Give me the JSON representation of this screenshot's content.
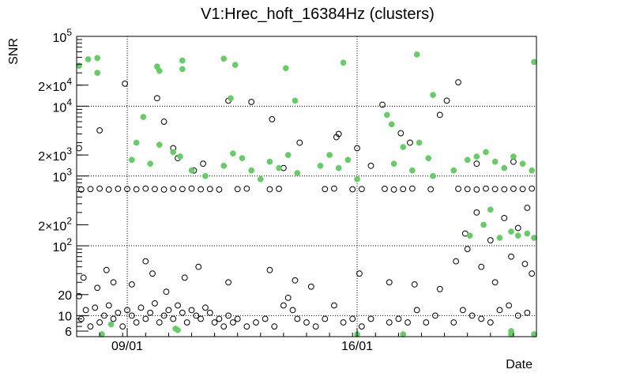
{
  "chart_data": {
    "type": "scatter",
    "title": "V1:Hrec_hoft_16384Hz (clusters)",
    "xlabel": "Date",
    "ylabel": "SNR",
    "x_unit": "days",
    "xlim": [
      0,
      20
    ],
    "ylim": [
      5,
      100000
    ],
    "y_scale": "log",
    "grid": true,
    "x_ticks": [
      {
        "value": 2.2,
        "label": "09/01"
      },
      {
        "value": 12.2,
        "label": "16/01"
      }
    ],
    "y_ticks": [
      {
        "value": 6,
        "label": "6"
      },
      {
        "value": 10,
        "label": "10"
      },
      {
        "value": 20,
        "label": "20"
      },
      {
        "value": 100,
        "label": "10",
        "exp": "2"
      },
      {
        "value": 200,
        "label": "2×10",
        "exp": "2"
      },
      {
        "value": 1000,
        "label": "10",
        "exp": "3"
      },
      {
        "value": 2000,
        "label": "2×10",
        "exp": "3"
      },
      {
        "value": 10000,
        "label": "10",
        "exp": "4"
      },
      {
        "value": 20000,
        "label": "2×10",
        "exp": "4"
      },
      {
        "value": 100000,
        "label": "10",
        "exp": "5"
      }
    ],
    "series": [
      {
        "marker": "open-circle",
        "color": "#000000",
        "points": [
          [
            0.1,
            19
          ],
          [
            0.2,
            9
          ],
          [
            0.4,
            12
          ],
          [
            0.6,
            7
          ],
          [
            0.8,
            13
          ],
          [
            1.0,
            8
          ],
          [
            1.2,
            10
          ],
          [
            1.4,
            14
          ],
          [
            1.6,
            9
          ],
          [
            1.8,
            11
          ],
          [
            2.0,
            7
          ],
          [
            2.2,
            12
          ],
          [
            2.4,
            10
          ],
          [
            2.6,
            8
          ],
          [
            2.8,
            13
          ],
          [
            3.0,
            9
          ],
          [
            3.2,
            11
          ],
          [
            3.4,
            15
          ],
          [
            3.6,
            8
          ],
          [
            3.8,
            10
          ],
          [
            4.0,
            12
          ],
          [
            4.2,
            9
          ],
          [
            4.4,
            14
          ],
          [
            4.6,
            11
          ],
          [
            4.8,
            8
          ],
          [
            5.0,
            12
          ],
          [
            5.2,
            10
          ],
          [
            5.4,
            9
          ],
          [
            5.6,
            13
          ],
          [
            5.8,
            11
          ],
          [
            6.0,
            8
          ],
          [
            6.2,
            9
          ],
          [
            6.4,
            7
          ],
          [
            6.6,
            10
          ],
          [
            6.8,
            8
          ],
          [
            7.0,
            9
          ],
          [
            7.4,
            7
          ],
          [
            7.8,
            8
          ],
          [
            8.2,
            9
          ],
          [
            8.6,
            7
          ],
          [
            9.0,
            14
          ],
          [
            9.2,
            18
          ],
          [
            9.4,
            12
          ],
          [
            9.6,
            9
          ],
          [
            10.0,
            8
          ],
          [
            10.4,
            7
          ],
          [
            10.8,
            9
          ],
          [
            11.2,
            14
          ],
          [
            11.6,
            8
          ],
          [
            12.0,
            9
          ],
          [
            12.4,
            7
          ],
          [
            12.8,
            9
          ],
          [
            13.6,
            8
          ],
          [
            14.0,
            9
          ],
          [
            14.4,
            8
          ],
          [
            14.8,
            12
          ],
          [
            15.2,
            8
          ],
          [
            15.6,
            10
          ],
          [
            16.4,
            8
          ],
          [
            16.8,
            12
          ],
          [
            17.2,
            10
          ],
          [
            17.6,
            9
          ],
          [
            18.0,
            8
          ],
          [
            18.4,
            12
          ],
          [
            18.8,
            14
          ],
          [
            19.2,
            10
          ],
          [
            19.6,
            11
          ],
          [
            0.3,
            35
          ],
          [
            0.9,
            25
          ],
          [
            1.3,
            45
          ],
          [
            1.6,
            30
          ],
          [
            2.4,
            28
          ],
          [
            3.0,
            60
          ],
          [
            3.3,
            40
          ],
          [
            3.9,
            22
          ],
          [
            4.7,
            35
          ],
          [
            5.3,
            50
          ],
          [
            6.6,
            30
          ],
          [
            8.4,
            45
          ],
          [
            9.5,
            32
          ],
          [
            10.2,
            26
          ],
          [
            12.3,
            40
          ],
          [
            13.6,
            30
          ],
          [
            14.7,
            28
          ],
          [
            15.8,
            24
          ],
          [
            16.5,
            60
          ],
          [
            17.0,
            90
          ],
          [
            17.6,
            50
          ],
          [
            18.2,
            30
          ],
          [
            18.9,
            70
          ],
          [
            19.5,
            55
          ],
          [
            19.8,
            40
          ],
          [
            16.9,
            150
          ],
          [
            17.4,
            300
          ],
          [
            18.0,
            120
          ],
          [
            18.6,
            250
          ],
          [
            19.2,
            180
          ],
          [
            19.6,
            350
          ],
          [
            0.2,
            640
          ],
          [
            0.6,
            650
          ],
          [
            1.0,
            660
          ],
          [
            1.4,
            640
          ],
          [
            1.8,
            655
          ],
          [
            2.2,
            650
          ],
          [
            2.6,
            645
          ],
          [
            3.0,
            660
          ],
          [
            3.4,
            650
          ],
          [
            3.8,
            640
          ],
          [
            4.2,
            655
          ],
          [
            4.6,
            650
          ],
          [
            5.0,
            660
          ],
          [
            5.4,
            645
          ],
          [
            5.8,
            650
          ],
          [
            6.2,
            640
          ],
          [
            7.0,
            650
          ],
          [
            7.4,
            660
          ],
          [
            8.4,
            645
          ],
          [
            8.8,
            655
          ],
          [
            10.8,
            650
          ],
          [
            11.2,
            660
          ],
          [
            12.0,
            645
          ],
          [
            12.4,
            650
          ],
          [
            13.4,
            655
          ],
          [
            13.8,
            640
          ],
          [
            14.2,
            650
          ],
          [
            14.6,
            660
          ],
          [
            15.4,
            645
          ],
          [
            16.6,
            655
          ],
          [
            17.0,
            650
          ],
          [
            17.4,
            640
          ],
          [
            17.8,
            660
          ],
          [
            18.2,
            650
          ],
          [
            18.6,
            645
          ],
          [
            19.0,
            655
          ],
          [
            19.4,
            650
          ],
          [
            19.8,
            660
          ],
          [
            0.1,
            2500
          ],
          [
            1.0,
            4500
          ],
          [
            2.1,
            21000
          ],
          [
            3.5,
            13000
          ],
          [
            3.8,
            6000
          ],
          [
            4.2,
            2500
          ],
          [
            4.4,
            1800
          ],
          [
            5.5,
            1500
          ],
          [
            6.6,
            12000
          ],
          [
            7.6,
            11500
          ],
          [
            8.5,
            6500
          ],
          [
            9.7,
            3000
          ],
          [
            11.3,
            3600
          ],
          [
            11.4,
            4000
          ],
          [
            12.2,
            2500
          ],
          [
            13.3,
            10500
          ],
          [
            14.1,
            4100
          ],
          [
            14.5,
            3000
          ],
          [
            15.8,
            7500
          ],
          [
            16.1,
            12000
          ],
          [
            16.6,
            22000
          ],
          [
            17.4,
            1500
          ],
          [
            5.1,
            1200
          ],
          [
            9.0,
            1300
          ],
          [
            12.8,
            1400
          ],
          [
            19.0,
            1600
          ]
        ]
      },
      {
        "marker": "filled-circle",
        "color": "#66cc66",
        "points": [
          [
            0.1,
            38000
          ],
          [
            0.5,
            47000
          ],
          [
            0.9,
            49000
          ],
          [
            0.9,
            30000
          ],
          [
            3.5,
            37000
          ],
          [
            3.6,
            32000
          ],
          [
            4.6,
            45000
          ],
          [
            4.6,
            34000
          ],
          [
            6.4,
            48000
          ],
          [
            6.7,
            13000
          ],
          [
            6.9,
            39000
          ],
          [
            9.1,
            35000
          ],
          [
            9.5,
            12000
          ],
          [
            11.6,
            42000
          ],
          [
            13.5,
            7500
          ],
          [
            13.7,
            5500
          ],
          [
            14.8,
            55000
          ],
          [
            15.5,
            14500
          ],
          [
            20.0,
            43000
          ],
          [
            2.4,
            1700
          ],
          [
            2.6,
            3000
          ],
          [
            2.9,
            7000
          ],
          [
            3.2,
            1500
          ],
          [
            3.6,
            2800
          ],
          [
            4.2,
            2200
          ],
          [
            4.5,
            1900
          ],
          [
            5.0,
            1200
          ],
          [
            5.6,
            1000
          ],
          [
            6.4,
            1400
          ],
          [
            6.8,
            2100
          ],
          [
            7.2,
            1800
          ],
          [
            7.6,
            1200
          ],
          [
            8.0,
            900
          ],
          [
            8.4,
            1600
          ],
          [
            8.8,
            1300
          ],
          [
            9.2,
            2000
          ],
          [
            9.6,
            1100
          ],
          [
            10.6,
            1400
          ],
          [
            11.0,
            2000
          ],
          [
            11.4,
            1300
          ],
          [
            11.8,
            1700
          ],
          [
            12.2,
            900
          ],
          [
            13.8,
            1500
          ],
          [
            14.2,
            2600
          ],
          [
            14.6,
            1200
          ],
          [
            14.9,
            3000
          ],
          [
            15.3,
            1800
          ],
          [
            15.5,
            1000
          ],
          [
            16.4,
            1200
          ],
          [
            17.0,
            1700
          ],
          [
            17.4,
            1900
          ],
          [
            17.8,
            2200
          ],
          [
            18.2,
            1600
          ],
          [
            18.6,
            1300
          ],
          [
            19.0,
            1900
          ],
          [
            19.4,
            1500
          ],
          [
            19.8,
            1200
          ],
          [
            18.4,
            130
          ],
          [
            18.9,
            160
          ],
          [
            19.2,
            140
          ],
          [
            19.6,
            150
          ],
          [
            19.9,
            130
          ],
          [
            17.1,
            140
          ],
          [
            17.7,
            200
          ],
          [
            18.0,
            330
          ],
          [
            1.5,
            7.5
          ],
          [
            1.1,
            5.4
          ],
          [
            4.3,
            6.5
          ],
          [
            4.4,
            6.2
          ],
          [
            12.2,
            5.3
          ],
          [
            14.2,
            5.4
          ],
          [
            18.9,
            5.2
          ],
          [
            18.9,
            6.0
          ],
          [
            20.0,
            5.3
          ]
        ]
      }
    ]
  }
}
